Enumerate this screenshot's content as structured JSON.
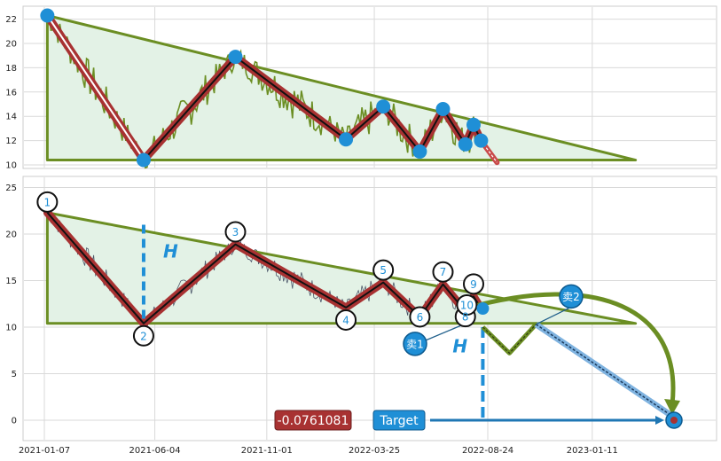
{
  "chart_data": [
    {
      "type": "line",
      "panel": "top",
      "ylim": [
        9.8,
        23
      ],
      "yticks": [
        "10",
        "12",
        "14",
        "16",
        "18",
        "20",
        "22"
      ],
      "grid": true,
      "triangle": {
        "apex_price": 22.3,
        "base_price": 10.4
      },
      "zigzag": [
        {
          "x": "2021-01-11",
          "y": 22.3
        },
        {
          "x": "2021-05-20",
          "y": 10.4
        },
        {
          "x": "2021-09-20",
          "y": 18.9
        },
        {
          "x": "2022-02-15",
          "y": 12.1
        },
        {
          "x": "2022-04-06",
          "y": 14.8
        },
        {
          "x": "2022-05-25",
          "y": 11.1
        },
        {
          "x": "2022-06-25",
          "y": 14.6
        },
        {
          "x": "2022-07-25",
          "y": 11.7
        },
        {
          "x": "2022-08-05",
          "y": 13.3
        },
        {
          "x": "2022-08-15",
          "y": 12.0
        }
      ],
      "price_line_color": "#6b8e23",
      "zigzag_color": "#a83232",
      "marker_color": "#1f8fd6",
      "triangle_color": "#6b8e23"
    },
    {
      "type": "line",
      "panel": "bottom",
      "ylim": [
        -2.5,
        25.5
      ],
      "yticks": [
        "0",
        "5",
        "10",
        "15",
        "20",
        "25"
      ],
      "xticks": [
        "2021-01-07",
        "2021-06-04",
        "2021-11-01",
        "2022-03-25",
        "2022-08-24",
        "2023-01-11"
      ],
      "grid": true,
      "points": [
        {
          "label": "1",
          "x": "2021-01-11",
          "y": 22.3
        },
        {
          "label": "2",
          "x": "2021-05-20",
          "y": 10.4
        },
        {
          "label": "3",
          "x": "2021-09-20",
          "y": 18.9
        },
        {
          "label": "4",
          "x": "2022-02-15",
          "y": 12.1
        },
        {
          "label": "5",
          "x": "2022-04-06",
          "y": 14.8
        },
        {
          "label": "6",
          "x": "2022-05-25",
          "y": 11.1
        },
        {
          "label": "7",
          "x": "2022-06-25",
          "y": 14.6
        },
        {
          "label": "8",
          "x": "2022-07-25",
          "y": 11.7
        },
        {
          "label": "9",
          "x": "2022-08-05",
          "y": 13.3
        },
        {
          "label": "10",
          "x": "2022-08-15",
          "y": 12.0
        }
      ],
      "triangle": {
        "apex_price": 22.3,
        "base_price": 10.4,
        "end_x": "2023-03-10"
      },
      "height_label": "H",
      "sell_labels": [
        "卖1",
        "卖2"
      ],
      "target_label": "Target",
      "target_value": "-0.0761081",
      "target_price": 0
    }
  ]
}
